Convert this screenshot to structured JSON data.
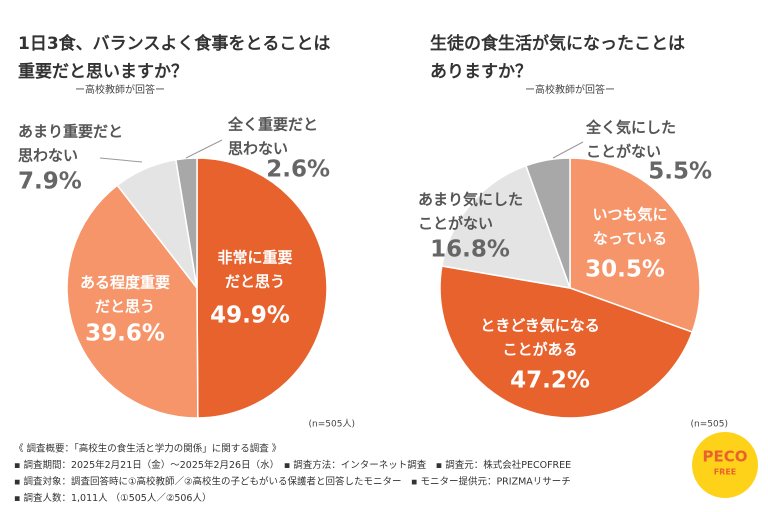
{
  "chart_data": [
    {
      "type": "pie",
      "title": [
        "1日3食、バランスよく食事をとることは",
        "重要だと思いますか？"
      ],
      "subtitle": "ー高校教師が回答ー",
      "note": "(n=505人)",
      "categories": [
        [
          "非常に重要",
          "だと思う"
        ],
        [
          "ある程度重要",
          "だと思う"
        ],
        [
          "あまり重要だと",
          "思わない"
        ],
        [
          "全く重要だと",
          "思わない"
        ]
      ],
      "values": [
        49.9,
        39.6,
        7.9,
        2.6
      ],
      "value_labels": [
        "49.9%",
        "39.6%",
        "7.9%",
        "2.6%"
      ],
      "colors": [
        "#e8622e",
        "#f6946a",
        "#e4e4e4",
        "#a8a8a8"
      ]
    },
    {
      "type": "pie",
      "title": [
        "生徒の食生活が気になったことは",
        "ありますか？"
      ],
      "subtitle": "ー高校教師が回答ー",
      "note": "(n=505)",
      "categories": [
        [
          "いつも気に",
          "なっている"
        ],
        [
          "ときどき気になる",
          "ことがある"
        ],
        [
          "あまり気にした",
          "ことがない"
        ],
        [
          "全く気にした",
          "ことがない"
        ]
      ],
      "values": [
        30.5,
        47.2,
        16.8,
        5.5
      ],
      "value_labels": [
        "30.5%",
        "47.2%",
        "16.8%",
        "5.5%"
      ],
      "colors": [
        "#f6946a",
        "#e8622e",
        "#e4e4e4",
        "#a8a8a8"
      ]
    }
  ],
  "notes": [
    "《 調査概要：「高校生の食生活と学力の関係」に関する調査 》",
    "▪ 調査期間：2025年2月21日（金）〜2025年2月26日（水）　▪ 調査方法：インターネット調査　▪ 調査元：株式会社PECOFREE",
    "▪ 調査対象：調査回答時に①高校教師／②高校生の子どもがいる保護者と回答したモニター　▪ モニター提供元：PRIZMAリサーチ",
    "▪ 調査人数：1,011人 （①505人／②506人）"
  ],
  "logo": [
    "PECO",
    "FREE"
  ]
}
